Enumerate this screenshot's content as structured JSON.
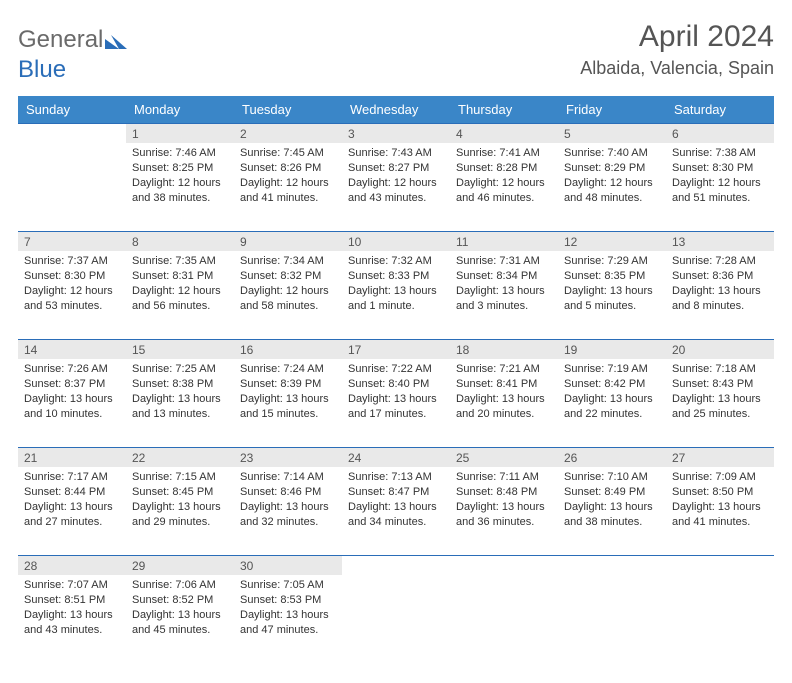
{
  "brand": {
    "general": "General",
    "blue": "Blue"
  },
  "title": "April 2024",
  "location": "Albaida, Valencia, Spain",
  "colors": {
    "header_bg": "#3a86c8",
    "rule": "#2a6db8",
    "daynum_bg": "#e9e9e9",
    "text": "#555555"
  },
  "weekdays": [
    "Sunday",
    "Monday",
    "Tuesday",
    "Wednesday",
    "Thursday",
    "Friday",
    "Saturday"
  ],
  "weeks": [
    [
      null,
      {
        "n": "1",
        "r": "Sunrise: 7:46 AM",
        "s": "Sunset: 8:25 PM",
        "d1": "Daylight: 12 hours",
        "d2": "and 38 minutes."
      },
      {
        "n": "2",
        "r": "Sunrise: 7:45 AM",
        "s": "Sunset: 8:26 PM",
        "d1": "Daylight: 12 hours",
        "d2": "and 41 minutes."
      },
      {
        "n": "3",
        "r": "Sunrise: 7:43 AM",
        "s": "Sunset: 8:27 PM",
        "d1": "Daylight: 12 hours",
        "d2": "and 43 minutes."
      },
      {
        "n": "4",
        "r": "Sunrise: 7:41 AM",
        "s": "Sunset: 8:28 PM",
        "d1": "Daylight: 12 hours",
        "d2": "and 46 minutes."
      },
      {
        "n": "5",
        "r": "Sunrise: 7:40 AM",
        "s": "Sunset: 8:29 PM",
        "d1": "Daylight: 12 hours",
        "d2": "and 48 minutes."
      },
      {
        "n": "6",
        "r": "Sunrise: 7:38 AM",
        "s": "Sunset: 8:30 PM",
        "d1": "Daylight: 12 hours",
        "d2": "and 51 minutes."
      }
    ],
    [
      {
        "n": "7",
        "r": "Sunrise: 7:37 AM",
        "s": "Sunset: 8:30 PM",
        "d1": "Daylight: 12 hours",
        "d2": "and 53 minutes."
      },
      {
        "n": "8",
        "r": "Sunrise: 7:35 AM",
        "s": "Sunset: 8:31 PM",
        "d1": "Daylight: 12 hours",
        "d2": "and 56 minutes."
      },
      {
        "n": "9",
        "r": "Sunrise: 7:34 AM",
        "s": "Sunset: 8:32 PM",
        "d1": "Daylight: 12 hours",
        "d2": "and 58 minutes."
      },
      {
        "n": "10",
        "r": "Sunrise: 7:32 AM",
        "s": "Sunset: 8:33 PM",
        "d1": "Daylight: 13 hours",
        "d2": "and 1 minute."
      },
      {
        "n": "11",
        "r": "Sunrise: 7:31 AM",
        "s": "Sunset: 8:34 PM",
        "d1": "Daylight: 13 hours",
        "d2": "and 3 minutes."
      },
      {
        "n": "12",
        "r": "Sunrise: 7:29 AM",
        "s": "Sunset: 8:35 PM",
        "d1": "Daylight: 13 hours",
        "d2": "and 5 minutes."
      },
      {
        "n": "13",
        "r": "Sunrise: 7:28 AM",
        "s": "Sunset: 8:36 PM",
        "d1": "Daylight: 13 hours",
        "d2": "and 8 minutes."
      }
    ],
    [
      {
        "n": "14",
        "r": "Sunrise: 7:26 AM",
        "s": "Sunset: 8:37 PM",
        "d1": "Daylight: 13 hours",
        "d2": "and 10 minutes."
      },
      {
        "n": "15",
        "r": "Sunrise: 7:25 AM",
        "s": "Sunset: 8:38 PM",
        "d1": "Daylight: 13 hours",
        "d2": "and 13 minutes."
      },
      {
        "n": "16",
        "r": "Sunrise: 7:24 AM",
        "s": "Sunset: 8:39 PM",
        "d1": "Daylight: 13 hours",
        "d2": "and 15 minutes."
      },
      {
        "n": "17",
        "r": "Sunrise: 7:22 AM",
        "s": "Sunset: 8:40 PM",
        "d1": "Daylight: 13 hours",
        "d2": "and 17 minutes."
      },
      {
        "n": "18",
        "r": "Sunrise: 7:21 AM",
        "s": "Sunset: 8:41 PM",
        "d1": "Daylight: 13 hours",
        "d2": "and 20 minutes."
      },
      {
        "n": "19",
        "r": "Sunrise: 7:19 AM",
        "s": "Sunset: 8:42 PM",
        "d1": "Daylight: 13 hours",
        "d2": "and 22 minutes."
      },
      {
        "n": "20",
        "r": "Sunrise: 7:18 AM",
        "s": "Sunset: 8:43 PM",
        "d1": "Daylight: 13 hours",
        "d2": "and 25 minutes."
      }
    ],
    [
      {
        "n": "21",
        "r": "Sunrise: 7:17 AM",
        "s": "Sunset: 8:44 PM",
        "d1": "Daylight: 13 hours",
        "d2": "and 27 minutes."
      },
      {
        "n": "22",
        "r": "Sunrise: 7:15 AM",
        "s": "Sunset: 8:45 PM",
        "d1": "Daylight: 13 hours",
        "d2": "and 29 minutes."
      },
      {
        "n": "23",
        "r": "Sunrise: 7:14 AM",
        "s": "Sunset: 8:46 PM",
        "d1": "Daylight: 13 hours",
        "d2": "and 32 minutes."
      },
      {
        "n": "24",
        "r": "Sunrise: 7:13 AM",
        "s": "Sunset: 8:47 PM",
        "d1": "Daylight: 13 hours",
        "d2": "and 34 minutes."
      },
      {
        "n": "25",
        "r": "Sunrise: 7:11 AM",
        "s": "Sunset: 8:48 PM",
        "d1": "Daylight: 13 hours",
        "d2": "and 36 minutes."
      },
      {
        "n": "26",
        "r": "Sunrise: 7:10 AM",
        "s": "Sunset: 8:49 PM",
        "d1": "Daylight: 13 hours",
        "d2": "and 38 minutes."
      },
      {
        "n": "27",
        "r": "Sunrise: 7:09 AM",
        "s": "Sunset: 8:50 PM",
        "d1": "Daylight: 13 hours",
        "d2": "and 41 minutes."
      }
    ],
    [
      {
        "n": "28",
        "r": "Sunrise: 7:07 AM",
        "s": "Sunset: 8:51 PM",
        "d1": "Daylight: 13 hours",
        "d2": "and 43 minutes."
      },
      {
        "n": "29",
        "r": "Sunrise: 7:06 AM",
        "s": "Sunset: 8:52 PM",
        "d1": "Daylight: 13 hours",
        "d2": "and 45 minutes."
      },
      {
        "n": "30",
        "r": "Sunrise: 7:05 AM",
        "s": "Sunset: 8:53 PM",
        "d1": "Daylight: 13 hours",
        "d2": "and 47 minutes."
      },
      null,
      null,
      null,
      null
    ]
  ]
}
